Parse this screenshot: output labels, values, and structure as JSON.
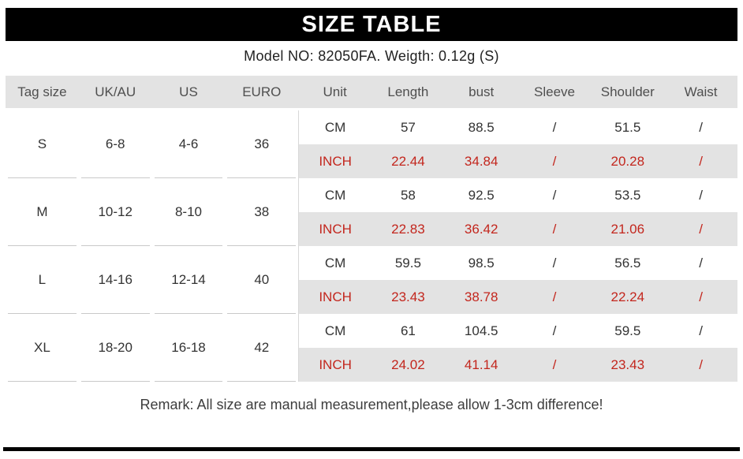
{
  "banner": {
    "title": "SIZE TABLE"
  },
  "model_line": "Model NO:  82050FA. Weigth:  0.12g  (S)",
  "table": {
    "headers": [
      "Tag size",
      "UK/AU",
      "US",
      "EURO",
      "Unit",
      "Length",
      "bust",
      "Sleeve",
      "Shoulder",
      "Waist"
    ],
    "rows": [
      {
        "tag": "S",
        "uk_au": "6-8",
        "us": "4-6",
        "euro": "36",
        "cm": {
          "unit": "CM",
          "length": "57",
          "bust": "88.5",
          "sleeve": "/",
          "shoulder": "51.5",
          "waist": "/"
        },
        "inch": {
          "unit": "INCH",
          "length": "22.44",
          "bust": "34.84",
          "sleeve": "/",
          "shoulder": "20.28",
          "waist": "/"
        }
      },
      {
        "tag": "M",
        "uk_au": "10-12",
        "us": "8-10",
        "euro": "38",
        "cm": {
          "unit": "CM",
          "length": "58",
          "bust": "92.5",
          "sleeve": "/",
          "shoulder": "53.5",
          "waist": "/"
        },
        "inch": {
          "unit": "INCH",
          "length": "22.83",
          "bust": "36.42",
          "sleeve": "/",
          "shoulder": "21.06",
          "waist": "/"
        }
      },
      {
        "tag": "L",
        "uk_au": "14-16",
        "us": "12-14",
        "euro": "40",
        "cm": {
          "unit": "CM",
          "length": "59.5",
          "bust": "98.5",
          "sleeve": "/",
          "shoulder": "56.5",
          "waist": "/"
        },
        "inch": {
          "unit": "INCH",
          "length": "23.43",
          "bust": "38.78",
          "sleeve": "/",
          "shoulder": "22.24",
          "waist": "/"
        }
      },
      {
        "tag": "XL",
        "uk_au": "18-20",
        "us": "16-18",
        "euro": "42",
        "cm": {
          "unit": "CM",
          "length": "61",
          "bust": "104.5",
          "sleeve": "/",
          "shoulder": "59.5",
          "waist": "/"
        },
        "inch": {
          "unit": "INCH",
          "length": "24.02",
          "bust": "41.14",
          "sleeve": "/",
          "shoulder": "23.43",
          "waist": "/"
        }
      }
    ]
  },
  "remark": "Remark: All size are manual measurement,please allow 1-3cm difference!",
  "colors": {
    "accent_red": "#c3261d",
    "band_gray": "#e3e3e3",
    "banner_black": "#000000"
  }
}
